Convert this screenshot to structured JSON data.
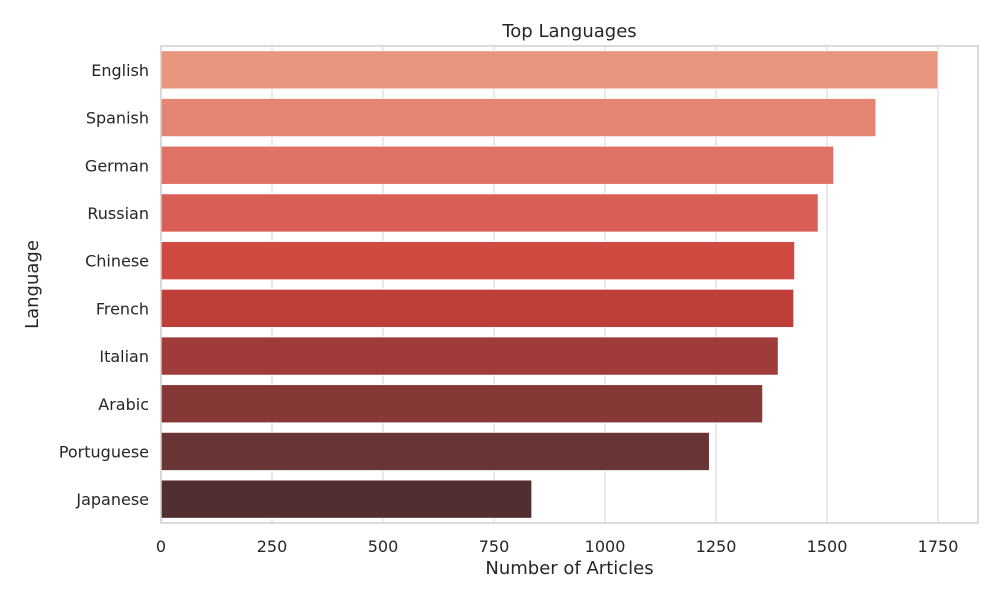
{
  "chart_data": {
    "type": "bar",
    "orientation": "horizontal",
    "title": "Top Languages",
    "xlabel": "Number of Articles",
    "ylabel": "Language",
    "categories": [
      "English",
      "Spanish",
      "German",
      "Russian",
      "Chinese",
      "French",
      "Italian",
      "Arabic",
      "Portuguese",
      "Japanese"
    ],
    "values": [
      1750,
      1610,
      1515,
      1480,
      1427,
      1425,
      1390,
      1355,
      1235,
      835
    ],
    "xlim": [
      0,
      1840
    ],
    "xticks": [
      "0",
      "250",
      "500",
      "750",
      "1000",
      "1250",
      "1500",
      "1750"
    ],
    "colors": [
      "#e9967f",
      "#e48472",
      "#df7265",
      "#d95e55",
      "#d04a42",
      "#bd3f38",
      "#9f3c39",
      "#853937",
      "#693434",
      "#512e2f"
    ],
    "grid": true,
    "grid_axis": "x",
    "legend": "none"
  }
}
